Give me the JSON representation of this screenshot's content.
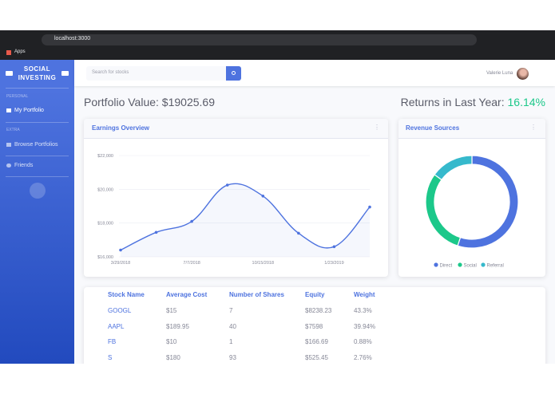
{
  "browser": {
    "url": "localhost:3000",
    "bookmarks": [
      "Apps"
    ]
  },
  "sidebar": {
    "brand": [
      "SOCIAL",
      "INVESTING"
    ],
    "sections": [
      {
        "heading": "PERSONAL",
        "items": [
          "My Portfolio"
        ]
      },
      {
        "heading": "EXTRA",
        "items": [
          "Browse Portfolios",
          "Friends"
        ]
      }
    ]
  },
  "topbar": {
    "search_placeholder": "Search for stocks",
    "user": "Valerie Luna"
  },
  "summary": {
    "portfolio": "Portfolio Value: $19025.69",
    "returns_label": "Returns in Last Year:",
    "returns_value": "16.14%"
  },
  "chart_data": [
    {
      "type": "line",
      "title": "Earnings Overview",
      "categories": [
        "3/29/2018",
        null,
        "7/7/2018",
        null,
        "10/15/2018",
        null,
        "1/23/2019",
        null
      ],
      "values": [
        16400,
        17450,
        18100,
        20250,
        19600,
        17400,
        16600,
        18950
      ],
      "color": "#4e73df",
      "ylim": [
        16000,
        22000
      ],
      "yticks": [
        {
          "value": 16000,
          "label": "$16,000"
        },
        {
          "value": 18000,
          "label": "$18,000"
        },
        {
          "value": 20000,
          "label": "$20,000"
        },
        {
          "value": 22000,
          "label": "$22,000"
        }
      ]
    },
    {
      "type": "pie",
      "donut": true,
      "title": "Revenue Sources",
      "categories": [
        "Direct",
        "Social",
        "Referral"
      ],
      "values": [
        55,
        30,
        15
      ],
      "colors": [
        "#4e73df",
        "#1cc88a",
        "#36b9cc"
      ]
    }
  ],
  "table": {
    "columns": [
      "Stock Name",
      "Average Cost",
      "Number of Shares",
      "Equity",
      "Weight"
    ],
    "rows": [
      [
        "GOOGL",
        "$15",
        "7",
        "$8238.23",
        "43.3%"
      ],
      [
        "AAPL",
        "$189.95",
        "40",
        "$7598",
        "39.94%"
      ],
      [
        "FB",
        "$10",
        "1",
        "$166.69",
        "0.88%"
      ],
      [
        "S",
        "$180",
        "93",
        "$525.45",
        "2.76%"
      ]
    ]
  }
}
